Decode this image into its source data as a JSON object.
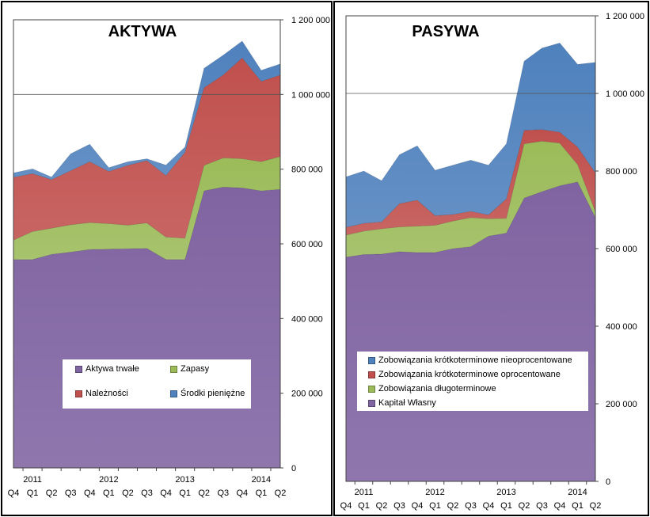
{
  "chart_data": [
    {
      "type": "area",
      "stacked": true,
      "title": "AKTYWA",
      "periods": [
        "Q4",
        "Q1",
        "Q2",
        "Q3",
        "Q4",
        "Q1",
        "Q2",
        "Q3",
        "Q4",
        "Q1",
        "Q2",
        "Q3",
        "Q4",
        "Q1",
        "Q2"
      ],
      "years": [
        {
          "label": "2011",
          "at_index": 1
        },
        {
          "label": "2012",
          "at_index": 5
        },
        {
          "label": "2013",
          "at_index": 9
        },
        {
          "label": "2014",
          "at_index": 13
        }
      ],
      "ylim": [
        0,
        1200000
      ],
      "y_ticks": [
        "0",
        "200 000",
        "400 000",
        "600 000",
        "800 000",
        "1 000 000",
        "1 200 000"
      ],
      "y_tick_values": [
        0,
        200000,
        400000,
        600000,
        800000,
        1000000,
        1200000
      ],
      "gridlines": [
        1000000
      ],
      "series": [
        {
          "name": "Aktywa trwałe",
          "color": "#8064a2",
          "values": [
            558000,
            558000,
            572000,
            578000,
            585000,
            586000,
            587000,
            588000,
            558000,
            558000,
            742000,
            752000,
            750000,
            742000,
            746000
          ]
        },
        {
          "name": "Zapasy",
          "color": "#9bbb59",
          "values": [
            52000,
            75000,
            70000,
            73000,
            72000,
            68000,
            63000,
            68000,
            60000,
            57000,
            68000,
            78000,
            78000,
            78000,
            88000
          ]
        },
        {
          "name": "Należności",
          "color": "#c0504d",
          "values": [
            168000,
            155000,
            130000,
            145000,
            163000,
            140000,
            160000,
            167000,
            165000,
            230000,
            208000,
            222000,
            270000,
            215000,
            218000
          ]
        },
        {
          "name": "Środki pieniężne",
          "color": "#4f81bd",
          "values": [
            12000,
            13000,
            7000,
            45000,
            47000,
            10000,
            10000,
            5000,
            28000,
            14000,
            52000,
            53000,
            45000,
            30000,
            30000
          ]
        }
      ],
      "legend": {
        "rows": [
          [
            "Aktywa trwałe",
            "Zapasy"
          ],
          [
            "Należności",
            "Środki pieniężne"
          ]
        ]
      }
    },
    {
      "type": "area",
      "stacked": true,
      "title": "PASYWA",
      "periods": [
        "Q4",
        "Q1",
        "Q2",
        "Q3",
        "Q4",
        "Q1",
        "Q2",
        "Q3",
        "Q4",
        "Q1",
        "Q2",
        "Q3",
        "Q4",
        "Q1",
        "Q2"
      ],
      "years": [
        {
          "label": "2011",
          "at_index": 1
        },
        {
          "label": "2012",
          "at_index": 5
        },
        {
          "label": "2013",
          "at_index": 9
        },
        {
          "label": "2014",
          "at_index": 13
        }
      ],
      "ylim": [
        0,
        1200000
      ],
      "y_ticks": [
        "0",
        "200 000",
        "400 000",
        "600 000",
        "800 000",
        "1 000 000",
        "1 200 000"
      ],
      "y_tick_values": [
        0,
        200000,
        400000,
        600000,
        800000,
        1000000,
        1200000
      ],
      "gridlines": [
        1000000
      ],
      "series": [
        {
          "name": "Kapitał Własny",
          "color": "#8064a2",
          "values": [
            578000,
            585000,
            586000,
            592000,
            590000,
            590000,
            600000,
            605000,
            632000,
            640000,
            730000,
            747000,
            762000,
            772000,
            680000
          ]
        },
        {
          "name": "Zobowiązania długoterminowe",
          "color": "#9bbb59",
          "values": [
            57000,
            60000,
            65000,
            64000,
            68000,
            70000,
            71000,
            75000,
            45000,
            38000,
            140000,
            130000,
            110000,
            45000,
            15000
          ]
        },
        {
          "name": "Zobowiązania krótkoterminowe oprocentowane",
          "color": "#c0504d",
          "values": [
            20000,
            20000,
            18000,
            60000,
            67000,
            25000,
            17000,
            16000,
            10000,
            50000,
            35000,
            30000,
            28000,
            45000,
            100000
          ]
        },
        {
          "name": "Zobowiązania krótkoterminowe nieoprocentowane",
          "color": "#4f81bd",
          "values": [
            130000,
            135000,
            106000,
            126000,
            140000,
            117000,
            127000,
            132000,
            128000,
            142000,
            178000,
            210000,
            230000,
            213000,
            285000
          ]
        }
      ],
      "legend": {
        "rows": [
          [
            "Zobowiązania krótkoterminowe nieoprocentowane"
          ],
          [
            "Zobowiązania krótkoterminowe oprocentowane"
          ],
          [
            "Zobowiązania długoterminowe"
          ],
          [
            "Kapitał Własny"
          ]
        ]
      }
    }
  ]
}
